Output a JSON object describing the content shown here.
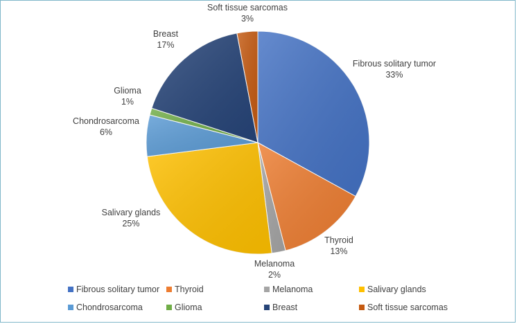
{
  "chart_data": {
    "type": "pie",
    "title": "",
    "slices": [
      {
        "label": "Fibrous solitary tumor",
        "value": 33,
        "display": "33%",
        "color": "#4472c4"
      },
      {
        "label": "Thyroid",
        "value": 13,
        "display": "13%",
        "color": "#ed7d31"
      },
      {
        "label": "Melanoma",
        "value": 2,
        "display": "2%",
        "color": "#a5a5a5"
      },
      {
        "label": "Salivary glands",
        "value": 25,
        "display": "25%",
        "color": "#ffc000"
      },
      {
        "label": "Chondrosarcoma",
        "value": 6,
        "display": "6%",
        "color": "#5b9bd5"
      },
      {
        "label": "Glioma",
        "value": 1,
        "display": "1%",
        "color": "#70ad47"
      },
      {
        "label": "Breast",
        "value": 17,
        "display": "17%",
        "color": "#264478"
      },
      {
        "label": "Soft tissue sarcomas",
        "value": 3,
        "display": "3%",
        "color": "#c55a11"
      }
    ],
    "legend_position": "bottom",
    "start_angle": "12 o'clock, clockwise"
  }
}
